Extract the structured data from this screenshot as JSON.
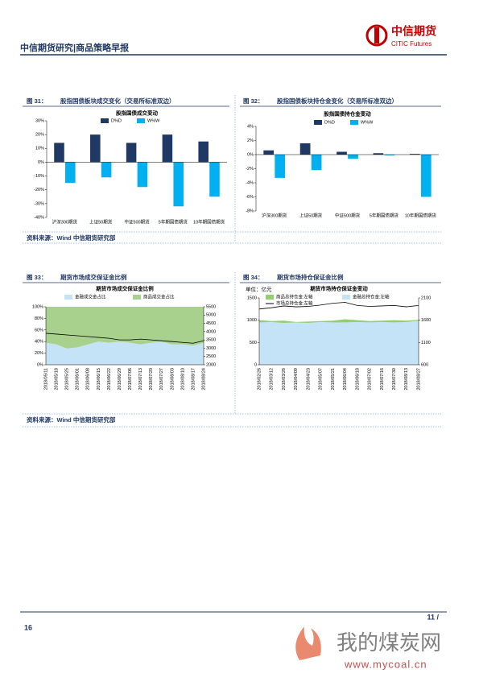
{
  "header": {
    "title": "中信期货研究|商品策略早报",
    "logo_name": "中信期货",
    "logo_sub": "CITIC Futures"
  },
  "figures": [
    {
      "label": "图 31：",
      "caption": "股指国债板块成交变化（交易所标准双边）"
    },
    {
      "label": "图 32：",
      "caption": "股指国债板块持仓金变化（交易所标准双边）"
    },
    {
      "label": "图 33：",
      "caption": "期货市场成交保证金比例"
    },
    {
      "label": "图 34：",
      "caption": "期货市场持仓保证金比例"
    }
  ],
  "sources": [
    "资料来源：Wind  中信期货研究部",
    "资料来源：Wind  中信期货研究部"
  ],
  "chart_data": [
    {
      "type": "bar",
      "title": "股指国债成交变动",
      "categories": [
        "沪深300期货",
        "上证50期货",
        "中证500期货",
        "5年期国债期货",
        "10年期国债期货"
      ],
      "series": [
        {
          "name": "D%D",
          "color": "#1f3864",
          "values": [
            14,
            20,
            14,
            20,
            15
          ]
        },
        {
          "name": "W%W",
          "color": "#00b0f0",
          "values": [
            -15,
            -11,
            -18,
            -32,
            -25
          ]
        }
      ],
      "ylim": [
        -40,
        30
      ],
      "yticks": [
        {
          "value": -40,
          "label": "-40%"
        },
        {
          "value": -30,
          "label": "-30%"
        },
        {
          "value": -20,
          "label": "-20%"
        },
        {
          "value": -10,
          "label": "-10%"
        },
        {
          "value": 0,
          "label": "0%"
        },
        {
          "value": 10,
          "label": "10%"
        },
        {
          "value": 20,
          "label": "20%"
        },
        {
          "value": 30,
          "label": "30%"
        }
      ]
    },
    {
      "type": "bar",
      "title": "股指国债持仓金变动",
      "categories": [
        "沪深300期货",
        "上证50期货",
        "中证500期货",
        "5年期国债期货",
        "10年期国债期货"
      ],
      "series": [
        {
          "name": "D%D",
          "color": "#1f3864",
          "values": [
            0.6,
            1.6,
            0.4,
            0.2,
            0.1
          ]
        },
        {
          "name": "W%W",
          "color": "#00b0f0",
          "values": [
            -3.3,
            -2.2,
            -0.6,
            -0.1,
            -6.0
          ]
        }
      ],
      "ylim": [
        -8,
        4
      ],
      "yticks": [
        {
          "value": -8,
          "label": "-8%"
        },
        {
          "value": -6,
          "label": "-6%"
        },
        {
          "value": -4,
          "label": "-4%"
        },
        {
          "value": -2,
          "label": "-2%"
        },
        {
          "value": 0,
          "label": "0%"
        },
        {
          "value": 2,
          "label": "2%"
        },
        {
          "value": 4,
          "label": "4%"
        }
      ]
    },
    {
      "type": "area",
      "title": "期货市场成交保证金比例",
      "stacked": true,
      "categories": [
        "2018/05/11",
        "2018/05/18",
        "2018/05/25",
        "2018/06/01",
        "2018/06/08",
        "2018/06/15",
        "2018/06/22",
        "2018/06/29",
        "2018/07/06",
        "2018/07/13",
        "2018/07/20",
        "2018/07/27",
        "2018/08/03",
        "2018/08/10",
        "2018/08/17",
        "2018/08/24"
      ],
      "series": [
        {
          "name": "金融成交金占比",
          "color": "#c5e3f6",
          "values": [
            38,
            35,
            28,
            30,
            35,
            40,
            38,
            40,
            38,
            35,
            38,
            40,
            35,
            35,
            33,
            38
          ]
        },
        {
          "name": "商品成交金占比",
          "color": "#a9d18e",
          "values": [
            62,
            65,
            72,
            70,
            65,
            60,
            62,
            60,
            62,
            65,
            62,
            60,
            65,
            65,
            67,
            62
          ]
        },
        {
          "type": "line",
          "axis": "y2",
          "color": "#000000",
          "values": [
            3900,
            3850,
            3800,
            3750,
            3700,
            3650,
            3600,
            3500,
            3500,
            3550,
            3500,
            3450,
            3400,
            3350,
            3300,
            3450
          ]
        }
      ],
      "ylim": [
        0,
        100
      ],
      "yticks": [
        {
          "value": 0,
          "label": "0%"
        },
        {
          "value": 20,
          "label": "20%"
        },
        {
          "value": 40,
          "label": "40%"
        },
        {
          "value": 60,
          "label": "60%"
        },
        {
          "value": 80,
          "label": "80%"
        },
        {
          "value": 100,
          "label": "100%"
        }
      ],
      "y2lim": [
        2000,
        5500
      ],
      "y2ticks": [
        2000,
        2500,
        3000,
        3500,
        4000,
        4500,
        5000,
        5500
      ]
    },
    {
      "type": "area",
      "title": "期货市场持仓保证金变动",
      "unit": "单位：亿元",
      "categories": [
        "2018/02/26",
        "2018/03/12",
        "2018/03/26",
        "2018/04/09",
        "2018/04/23",
        "2018/05/07",
        "2018/05/21",
        "2018/06/04",
        "2018/06/18",
        "2018/07/02",
        "2018/07/16",
        "2018/07/30",
        "2018/08/13",
        "2018/08/27"
      ],
      "series": [
        {
          "name": "商品总持仓金:左轴",
          "color": "#8fd16a",
          "values": [
            1000,
            980,
            990,
            960,
            970,
            980,
            990,
            1020,
            1000,
            980,
            990,
            1000,
            990,
            1010
          ]
        },
        {
          "name": "金融总持仓金:左轴",
          "color": "#c5e3f6",
          "values": [
            950,
            960,
            940,
            950,
            940,
            960,
            950,
            950,
            960,
            950,
            960,
            950,
            960,
            990
          ]
        },
        {
          "name": "市场总持仓金:左轴",
          "type": "line",
          "color": "#000000",
          "values": [
            1250,
            1280,
            1320,
            1300,
            1310,
            1340,
            1380,
            1400,
            1330,
            1310,
            1320,
            1330,
            1300,
            1330
          ]
        }
      ],
      "ylim": [
        0,
        1500
      ],
      "yticks": [
        0,
        500,
        1000,
        1500
      ],
      "y2lim": [
        600,
        2100
      ],
      "y2ticks": [
        600,
        1100,
        1600,
        2100
      ]
    }
  ],
  "footer": {
    "page": "16",
    "page_right": "11 /"
  },
  "watermark": {
    "name": "我的煤炭网",
    "url": "www.mycoal.cn"
  }
}
